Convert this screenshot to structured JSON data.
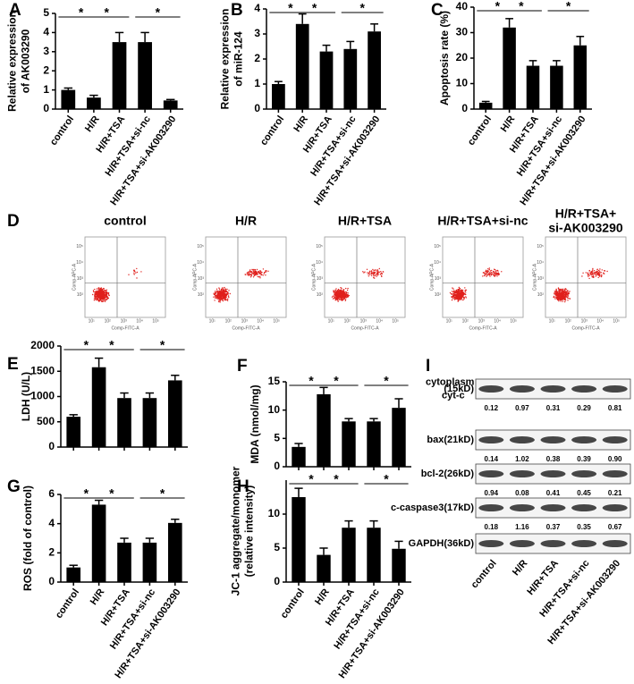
{
  "chart_data": [
    {
      "panel": "A",
      "type": "bar",
      "ylabel": [
        "Relative expression",
        "of AK003290"
      ],
      "categories": [
        "control",
        "H/R",
        "H/R+TSA",
        "H/R+TSA+si-nc",
        "H/R+TSA+si-AK003290"
      ],
      "values": [
        1.0,
        0.6,
        3.5,
        3.5,
        0.45
      ],
      "errors": [
        0.1,
        0.12,
        0.5,
        0.5,
        0.05
      ],
      "color": "#000000",
      "ylim": [
        0,
        5
      ],
      "yticks": [
        0,
        1,
        2,
        3,
        4,
        5
      ],
      "significance": [
        {
          "pair": [
            0,
            1
          ],
          "label": "*"
        },
        {
          "pair": [
            1,
            2
          ],
          "label": "*"
        },
        {
          "pair": [
            3,
            4
          ],
          "label": "*"
        }
      ]
    },
    {
      "panel": "B",
      "type": "bar",
      "ylabel": [
        "Relative expression",
        "of miR-124"
      ],
      "categories": [
        "control",
        "H/R",
        "H/R+TSA",
        "H/R+TSA+si-nc",
        "H/R+TSA+si-AK003290"
      ],
      "values": [
        1.0,
        3.4,
        2.3,
        2.4,
        3.1
      ],
      "errors": [
        0.1,
        0.4,
        0.25,
        0.3,
        0.3
      ],
      "color": "#000000",
      "ylim": [
        0,
        4
      ],
      "yticks": [
        0,
        1,
        2,
        3,
        4
      ],
      "significance": [
        {
          "pair": [
            0,
            1
          ],
          "label": "*"
        },
        {
          "pair": [
            1,
            2
          ],
          "label": "*"
        },
        {
          "pair": [
            3,
            4
          ],
          "label": "*"
        }
      ]
    },
    {
      "panel": "C",
      "type": "bar",
      "ylabel": [
        "Apoptosis rate (%)"
      ],
      "categories": [
        "control",
        "H/R",
        "H/R+TSA",
        "H/R+TSA+si-nc",
        "H/R+TSA+si-AK003290"
      ],
      "values": [
        2.5,
        32,
        17,
        17,
        25
      ],
      "errors": [
        0.5,
        3.5,
        2,
        2,
        3.5
      ],
      "color": "#000000",
      "ylim": [
        0,
        40
      ],
      "yticks": [
        0,
        10,
        20,
        30,
        40
      ],
      "significance": [
        {
          "pair": [
            0,
            1
          ],
          "label": "*"
        },
        {
          "pair": [
            1,
            2
          ],
          "label": "*"
        },
        {
          "pair": [
            3,
            4
          ],
          "label": "*"
        }
      ]
    },
    {
      "panel": "E",
      "type": "bar",
      "ylabel": [
        "LDH (U/L)"
      ],
      "categories": [
        null,
        null,
        null,
        null,
        null
      ],
      "values": [
        600,
        1580,
        970,
        970,
        1320
      ],
      "errors": [
        40,
        180,
        100,
        100,
        100
      ],
      "color": "#000000",
      "ylim": [
        0,
        2000
      ],
      "yticks": [
        0,
        500,
        1000,
        1500,
        2000
      ],
      "significance": [
        {
          "pair": [
            0,
            1
          ],
          "label": "*"
        },
        {
          "pair": [
            1,
            2
          ],
          "label": "*"
        },
        {
          "pair": [
            3,
            4
          ],
          "label": "*"
        }
      ]
    },
    {
      "panel": "F",
      "type": "bar",
      "ylabel": [
        "MDA (nmol/mg)"
      ],
      "categories": [
        null,
        null,
        null,
        null,
        null
      ],
      "values": [
        3.5,
        12.8,
        8,
        8,
        10.4
      ],
      "errors": [
        0.6,
        1.2,
        0.5,
        0.5,
        1.6
      ],
      "color": "#000000",
      "ylim": [
        0,
        15
      ],
      "yticks": [
        0,
        5,
        10,
        15
      ],
      "significance": [
        {
          "pair": [
            0,
            1
          ],
          "label": "*"
        },
        {
          "pair": [
            1,
            2
          ],
          "label": "*"
        },
        {
          "pair": [
            3,
            4
          ],
          "label": "*"
        }
      ]
    },
    {
      "panel": "G",
      "type": "bar",
      "ylabel": [
        "ROS (fold of control)"
      ],
      "categories": [
        "control",
        "H/R",
        "H/R+TSA",
        "H/R+TSA+si-nc",
        "H/R+TSA+si-AK003290"
      ],
      "values": [
        1.0,
        5.3,
        2.7,
        2.7,
        4.05
      ],
      "errors": [
        0.15,
        0.3,
        0.3,
        0.3,
        0.25
      ],
      "color": "#000000",
      "ylim": [
        0,
        6
      ],
      "yticks": [
        0,
        2,
        4,
        6
      ],
      "significance": [
        {
          "pair": [
            0,
            1
          ],
          "label": "*"
        },
        {
          "pair": [
            1,
            2
          ],
          "label": "*"
        },
        {
          "pair": [
            3,
            4
          ],
          "label": "*"
        }
      ]
    },
    {
      "panel": "H",
      "type": "bar",
      "ylabel": [
        "JC-1 aggregate/monomer",
        "(relative intensity)"
      ],
      "categories": [
        "control",
        "H/R",
        "H/R+TSA",
        "H/R+TSA+si-nc",
        "H/R+TSA+si-AK003290"
      ],
      "values": [
        12.5,
        4,
        8,
        8,
        4.9
      ],
      "errors": [
        1.3,
        1,
        1,
        1,
        1.1
      ],
      "color": "#000000",
      "ylim": [
        0,
        15
      ],
      "yticks": [
        0,
        5,
        10
      ],
      "significance": [
        {
          "pair": [
            0,
            1
          ],
          "label": "*"
        },
        {
          "pair": [
            1,
            2
          ],
          "label": "*"
        },
        {
          "pair": [
            3,
            4
          ],
          "label": "*"
        }
      ]
    }
  ],
  "flow": {
    "label": "D",
    "x_label": "Comp-FITC-A",
    "y_label": "Comp-APC-A",
    "axis_ticks": [
      "10¹",
      "10²",
      "10³",
      "10⁴",
      "10⁵"
    ],
    "plots": [
      {
        "title": [
          "control"
        ]
      },
      {
        "title": [
          "H/R"
        ]
      },
      {
        "title": [
          "H/R+TSA"
        ]
      },
      {
        "title": [
          "H/R+TSA+si-nc"
        ]
      },
      {
        "title": [
          "H/R+TSA+",
          "si-AK003290"
        ]
      }
    ]
  },
  "blot": {
    "label": "I",
    "rows": [
      {
        "name": [
          "cytoplasm",
          "cyt-c"
        ],
        "size": "(15kD)",
        "values": [
          "0.12",
          "0.97",
          "0.31",
          "0.29",
          "0.81"
        ]
      },
      {
        "name": [
          "bax"
        ],
        "size": "(21kD)",
        "values": [
          "0.14",
          "1.02",
          "0.38",
          "0.39",
          "0.90"
        ]
      },
      {
        "name": [
          "bcl-2"
        ],
        "size": "(26kD)",
        "values": [
          "0.94",
          "0.08",
          "0.41",
          "0.45",
          "0.21"
        ]
      },
      {
        "name": [
          "c-caspase3"
        ],
        "size": "(17kD)",
        "values": [
          "0.18",
          "1.16",
          "0.37",
          "0.35",
          "0.67"
        ]
      },
      {
        "name": [
          "GAPDH"
        ],
        "size": "(36kD)",
        "values": []
      }
    ],
    "lanes": [
      "control",
      "H/R",
      "H/R+TSA",
      "H/R+TSA+si-nc",
      "H/R+TSA+si-AK003290"
    ]
  }
}
